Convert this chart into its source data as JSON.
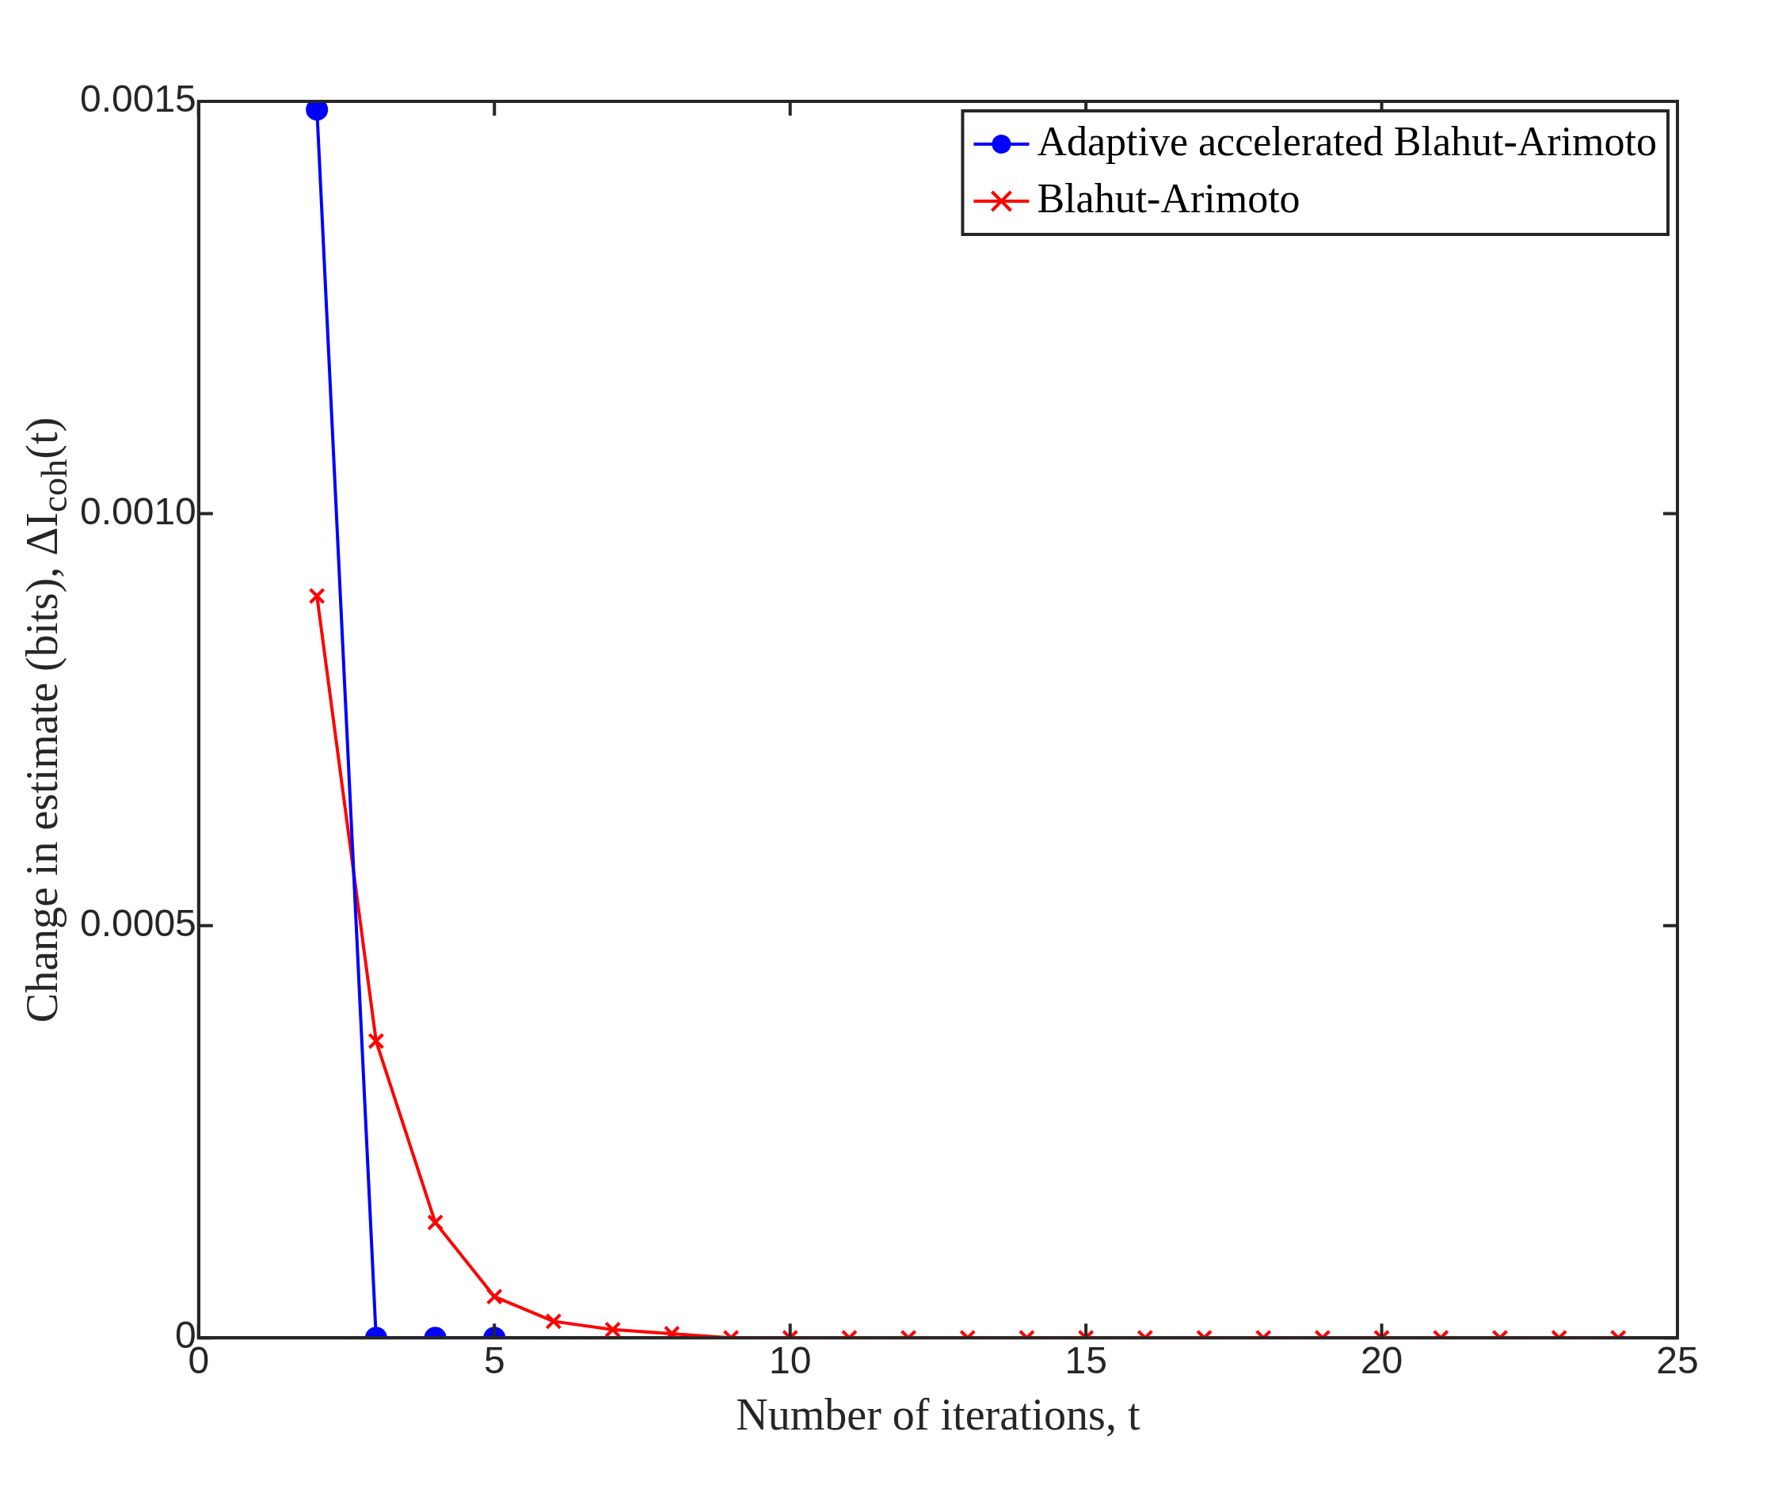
{
  "chart_data": {
    "type": "line",
    "xlabel": "Number of iterations, t",
    "ylabel": "Change in estimate (bits), ΔI$_{coh}$(t)",
    "x": [
      2,
      3,
      4,
      5,
      6,
      7,
      8,
      9,
      10,
      11,
      12,
      13,
      14,
      15,
      16,
      17,
      18,
      19,
      20,
      21,
      22,
      23,
      24
    ],
    "series": [
      {
        "name": "Adaptive accelerated Blahut-Arimoto",
        "color": "#0000ff",
        "marker": "circle",
        "x": [
          2,
          3,
          4,
          5
        ],
        "values": [
          0.00149,
          0,
          0,
          0
        ]
      },
      {
        "name": "Blahut-Arimoto",
        "color": "#ff0000",
        "marker": "cross",
        "values": [
          0.0009,
          0.00036,
          0.00014,
          5e-05,
          2e-05,
          1e-05,
          5e-06,
          0,
          0,
          0,
          0,
          0,
          0,
          0,
          0,
          0,
          0,
          0,
          0,
          0,
          0,
          0,
          0
        ]
      }
    ],
    "xlim": [
      0,
      25
    ],
    "xticks": [
      0,
      5,
      10,
      15,
      20,
      25
    ],
    "ylim": [
      0,
      0.0015
    ],
    "yticks": [
      0,
      0.0005,
      {
        "value": 0.001,
        "label": "0.0010"
      },
      0.0015
    ],
    "grid": false,
    "legend": "top right",
    "line_style": "solid"
  }
}
